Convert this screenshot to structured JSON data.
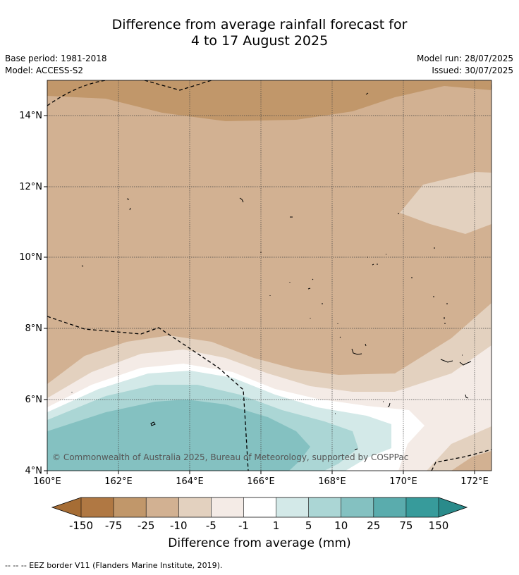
{
  "title": {
    "line1": "Difference from average rainfall forecast for",
    "line2": "4 to 17 August 2025"
  },
  "meta": {
    "base_period": "Base period: 1981-2018",
    "model": "Model: ACCESS-S2",
    "model_run": "Model run: 28/07/2025",
    "issued": "Issued: 30/07/2025"
  },
  "map": {
    "lon_ticks": [
      "160°E",
      "162°E",
      "164°E",
      "166°E",
      "168°E",
      "170°E",
      "172°E"
    ],
    "lat_ticks": [
      "4°N",
      "6°N",
      "8°N",
      "10°N",
      "12°N",
      "14°N"
    ],
    "copyright": "© Commonwealth of Australia 2025, Bureau of Meteorology, supported by COSPPac"
  },
  "colorbar": {
    "label": "Difference from average (mm)",
    "ticks": [
      "-150",
      "-75",
      "-25",
      "-10",
      "-5",
      "-1",
      "1",
      "5",
      "10",
      "25",
      "75",
      "150"
    ],
    "colors": [
      "#a66d35",
      "#b07843",
      "#c1976a",
      "#d2b192",
      "#e3d1bf",
      "#f4ebe6",
      "#ffffff",
      "#d3e9e8",
      "#abd6d5",
      "#84c1c1",
      "#5aacad",
      "#379b9b",
      "#2a8b8b"
    ]
  },
  "footer": "--  --  -- EEZ border V11 (Flanders Marine Institute, 2019)."
}
